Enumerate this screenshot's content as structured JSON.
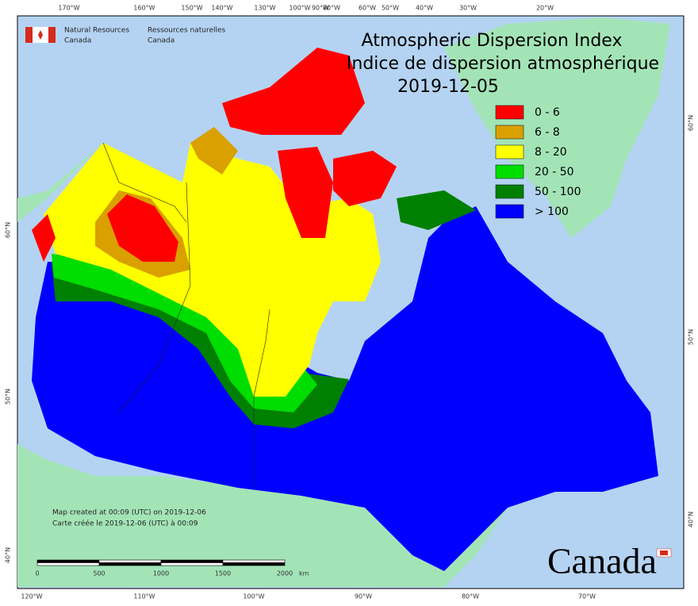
{
  "header": {
    "org_en": [
      "Natural Resources",
      "Canada"
    ],
    "org_fr": [
      "Ressources naturelles",
      "Canada"
    ]
  },
  "title": {
    "line1": "Atmospheric Dispersion Index",
    "line2": "Indice de dispersion atmosphérique",
    "date": "2019-12-05"
  },
  "legend": [
    {
      "label": "0 - 6",
      "color": "#ff0000"
    },
    {
      "label": "6 - 8",
      "color": "#d9a000"
    },
    {
      "label": "8 - 20",
      "color": "#ffff00"
    },
    {
      "label": "20 - 50",
      "color": "#00dd00"
    },
    {
      "label": "50 - 100",
      "color": "#008000"
    },
    {
      "label": "> 100",
      "color": "#0000ff"
    }
  ],
  "graticule": {
    "top": [
      "170°W",
      "160°W",
      "150°W",
      "140°W",
      "130°W",
      "100°W",
      "90°W",
      "80°W",
      "60°W",
      "50°W",
      "40°W",
      "30°W",
      "20°W"
    ],
    "bottom": [
      "120°W",
      "110°W",
      "100°W",
      "90°W",
      "80°W",
      "70°W"
    ],
    "left": [
      "60°N",
      "50°N",
      "40°N"
    ],
    "right": [
      "60°N",
      "50°N",
      "40°N"
    ]
  },
  "credit": [
    "Map created at 00:09 (UTC) on 2019-12-06",
    "Carte créée le 2019-12-06 (UTC) à 00:09"
  ],
  "scale": {
    "ticks": [
      "0",
      "500",
      "1000",
      "1500",
      "2000"
    ],
    "unit": "km"
  },
  "wordmark": "Canada"
}
